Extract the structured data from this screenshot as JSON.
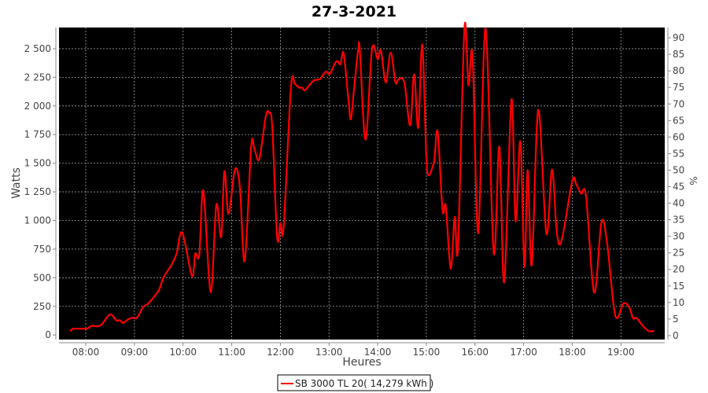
{
  "chart_data": {
    "type": "line",
    "title": "27-3-2021",
    "xlabel": "Heures",
    "ylabel": "Watts",
    "y2label": "%",
    "xlim": [
      "07:27",
      "19:54"
    ],
    "ylim": [
      -40,
      2685
    ],
    "y2lim": [
      -1.2,
      93.1
    ],
    "x_ticks": [
      "08:00",
      "09:00",
      "10:00",
      "11:00",
      "12:00",
      "13:00",
      "14:00",
      "15:00",
      "16:00",
      "17:00",
      "18:00",
      "19:00"
    ],
    "y_ticks": [
      0,
      250,
      500,
      750,
      1000,
      1250,
      1500,
      1750,
      2000,
      2250,
      2500
    ],
    "y_tick_labels": [
      "0",
      "250",
      "500",
      "750",
      "1 000",
      "1 250",
      "1 500",
      "1 750",
      "2 000",
      "2 250",
      "2 500"
    ],
    "y2_ticks": [
      "0",
      "5",
      "10",
      "15",
      "20",
      "25",
      "30",
      "35",
      "40",
      "45",
      "50",
      "55",
      "60",
      "65",
      "70",
      "75",
      "80",
      "85",
      "90"
    ],
    "grid": true,
    "background": "#000000",
    "gridcolor": "#a0a0a0",
    "legend_position": "bottom",
    "series": [
      {
        "name": "SB 3000 TL 20( 14,279 kWh )",
        "color": "#ff0000",
        "points": [
          [
            "07:41",
            35
          ],
          [
            "07:45",
            55
          ],
          [
            "08:01",
            55
          ],
          [
            "08:07",
            80
          ],
          [
            "08:14",
            75
          ],
          [
            "08:20",
            95
          ],
          [
            "08:30",
            180
          ],
          [
            "08:38",
            125
          ],
          [
            "08:42",
            130
          ],
          [
            "08:46",
            105
          ],
          [
            "08:51",
            130
          ],
          [
            "08:57",
            150
          ],
          [
            "09:03",
            150
          ],
          [
            "09:11",
            245
          ],
          [
            "09:17",
            275
          ],
          [
            "09:30",
            390
          ],
          [
            "09:36",
            505
          ],
          [
            "09:46",
            615
          ],
          [
            "09:52",
            710
          ],
          [
            "09:59",
            895
          ],
          [
            "10:11",
            515
          ],
          [
            "10:15",
            710
          ],
          [
            "10:20",
            700
          ],
          [
            "10:25",
            1260
          ],
          [
            "10:34",
            375
          ],
          [
            "10:41",
            1135
          ],
          [
            "10:47",
            855
          ],
          [
            "10:51",
            1430
          ],
          [
            "10:56",
            1060
          ],
          [
            "11:04",
            1445
          ],
          [
            "11:10",
            1295
          ],
          [
            "11:16",
            645
          ],
          [
            "11:24",
            1645
          ],
          [
            "11:28",
            1625
          ],
          [
            "11:34",
            1535
          ],
          [
            "11:42",
            1910
          ],
          [
            "11:46",
            1940
          ],
          [
            "11:50",
            1815
          ],
          [
            "11:56",
            855
          ],
          [
            "12:00",
            975
          ],
          [
            "12:04",
            940
          ],
          [
            "12:13",
            2160
          ],
          [
            "12:18",
            2190
          ],
          [
            "12:23",
            2160
          ],
          [
            "12:27",
            2160
          ],
          [
            "12:30",
            2135
          ],
          [
            "12:36",
            2185
          ],
          [
            "12:42",
            2225
          ],
          [
            "12:49",
            2235
          ],
          [
            "12:56",
            2300
          ],
          [
            "13:01",
            2280
          ],
          [
            "13:09",
            2390
          ],
          [
            "13:14",
            2365
          ],
          [
            "13:18",
            2460
          ],
          [
            "13:24",
            2050
          ],
          [
            "13:27",
            1885
          ],
          [
            "13:31",
            2160
          ],
          [
            "13:36",
            2495
          ],
          [
            "13:38",
            2480
          ],
          [
            "13:45",
            1705
          ],
          [
            "13:53",
            2495
          ],
          [
            "14:00",
            2410
          ],
          [
            "14:04",
            2485
          ],
          [
            "14:10",
            2205
          ],
          [
            "14:16",
            2465
          ],
          [
            "14:22",
            2205
          ],
          [
            "14:26",
            2235
          ],
          [
            "14:33",
            2200
          ],
          [
            "14:40",
            1830
          ],
          [
            "14:45",
            2275
          ],
          [
            "14:50",
            1810
          ],
          [
            "14:55",
            2535
          ],
          [
            "15:00",
            1555
          ],
          [
            "15:03",
            1395
          ],
          [
            "15:08",
            1475
          ],
          [
            "15:10",
            1535
          ],
          [
            "15:14",
            1775
          ],
          [
            "15:20",
            1090
          ],
          [
            "15:24",
            1125
          ],
          [
            "15:30",
            580
          ],
          [
            "15:35",
            1030
          ],
          [
            "15:39",
            765
          ],
          [
            "15:47",
            2680
          ],
          [
            "15:52",
            2180
          ],
          [
            "15:57",
            2440
          ],
          [
            "16:04",
            890
          ],
          [
            "16:13",
            2680
          ],
          [
            "16:23",
            720
          ],
          [
            "16:30",
            1645
          ],
          [
            "16:36",
            460
          ],
          [
            "16:45",
            2055
          ],
          [
            "16:50",
            995
          ],
          [
            "16:56",
            1690
          ],
          [
            "17:01",
            595
          ],
          [
            "17:05",
            1440
          ],
          [
            "17:10",
            610
          ],
          [
            "17:18",
            1965
          ],
          [
            "17:28",
            885
          ],
          [
            "17:35",
            1445
          ],
          [
            "17:41",
            890
          ],
          [
            "17:47",
            830
          ],
          [
            "18:00",
            1345
          ],
          [
            "18:05",
            1315
          ],
          [
            "18:11",
            1235
          ],
          [
            "18:17",
            1210
          ],
          [
            "18:27",
            370
          ],
          [
            "18:36",
            985
          ],
          [
            "18:43",
            800
          ],
          [
            "18:53",
            170
          ],
          [
            "19:03",
            275
          ],
          [
            "19:10",
            245
          ],
          [
            "19:15",
            145
          ],
          [
            "19:19",
            150
          ],
          [
            "19:27",
            80
          ],
          [
            "19:34",
            35
          ],
          [
            "19:41",
            35
          ]
        ]
      }
    ]
  }
}
